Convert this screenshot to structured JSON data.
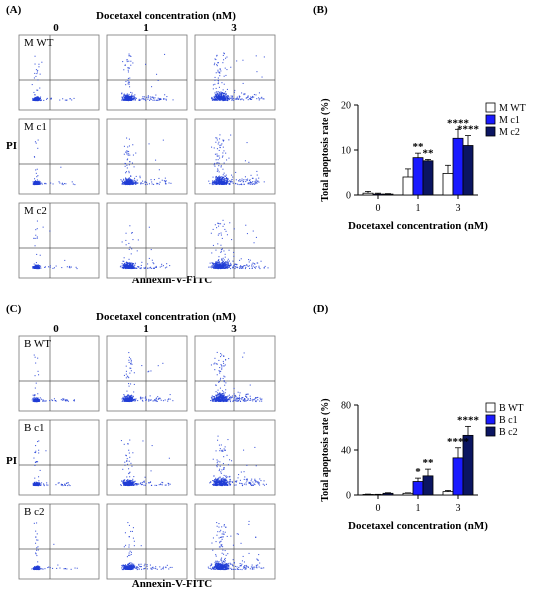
{
  "colors": {
    "wt": "#ffffff",
    "c1": "#1a1aff",
    "c2": "#0b1561",
    "dot": "#1f3dd6",
    "axis": "#000000"
  },
  "panel_a": {
    "label": "(A)",
    "title": "Docetaxel concentration (nM)",
    "columns": [
      "0",
      "1",
      "3"
    ],
    "rows": [
      "M WT",
      "M c1",
      "M c2"
    ],
    "y_label": "PI",
    "x_label": "Annexin-V-FITC"
  },
  "panel_c": {
    "label": "(C)",
    "title": "Docetaxel concentration (nM)",
    "columns": [
      "0",
      "1",
      "3"
    ],
    "rows": [
      "B WT",
      "B c1",
      "B c2"
    ],
    "y_label": "PI",
    "x_label": "Annexin-V-FITC"
  },
  "chart_data": [
    {
      "type": "bar",
      "panel": "(B)",
      "categories": [
        "0",
        "1",
        "3"
      ],
      "series": [
        {
          "name": "M WT",
          "values": [
            0.4,
            4.0,
            4.8
          ],
          "errors": [
            0.4,
            1.8,
            1.8
          ]
        },
        {
          "name": "M c1",
          "values": [
            0.2,
            8.3,
            12.6
          ],
          "errors": [
            0.2,
            1.0,
            2.0
          ]
        },
        {
          "name": "M c2",
          "values": [
            0.2,
            7.6,
            11.0
          ],
          "errors": [
            0.1,
            0.3,
            2.2
          ]
        }
      ],
      "annotations": [
        {
          "category": "1",
          "series": "M c1",
          "text": "**"
        },
        {
          "category": "1",
          "series": "M c2",
          "text": "**"
        },
        {
          "category": "3",
          "series": "M c1",
          "text": "****"
        },
        {
          "category": "3",
          "series": "M c2",
          "text": "****"
        }
      ],
      "ylim": [
        0,
        20
      ],
      "yticks": [
        "0",
        "10",
        "20"
      ],
      "xlabel": "Docetaxel concentration (nM)",
      "ylabel": "Total apoptosis rate (%)",
      "legend": "top-right"
    },
    {
      "type": "bar",
      "panel": "(D)",
      "categories": [
        "0",
        "1",
        "3"
      ],
      "series": [
        {
          "name": "B WT",
          "values": [
            0.5,
            1.5,
            3.0
          ],
          "errors": [
            0.3,
            0.4,
            1.0
          ]
        },
        {
          "name": "B c1",
          "values": [
            0.4,
            12.0,
            33.0
          ],
          "errors": [
            0.2,
            3.0,
            9.0
          ]
        },
        {
          "name": "B c2",
          "values": [
            1.5,
            17.0,
            53.0
          ],
          "errors": [
            0.5,
            6.0,
            8.0
          ]
        }
      ],
      "annotations": [
        {
          "category": "1",
          "series": "B c1",
          "text": "*"
        },
        {
          "category": "1",
          "series": "B c2",
          "text": "**"
        },
        {
          "category": "3",
          "series": "B c1",
          "text": "****"
        },
        {
          "category": "3",
          "series": "B c2",
          "text": "****"
        }
      ],
      "ylim": [
        0,
        80
      ],
      "yticks": [
        "0",
        "40",
        "80"
      ],
      "xlabel": "Docetaxel concentration (nM)",
      "ylabel": "Total apoptosis rate (%)",
      "legend": "top-right"
    }
  ]
}
